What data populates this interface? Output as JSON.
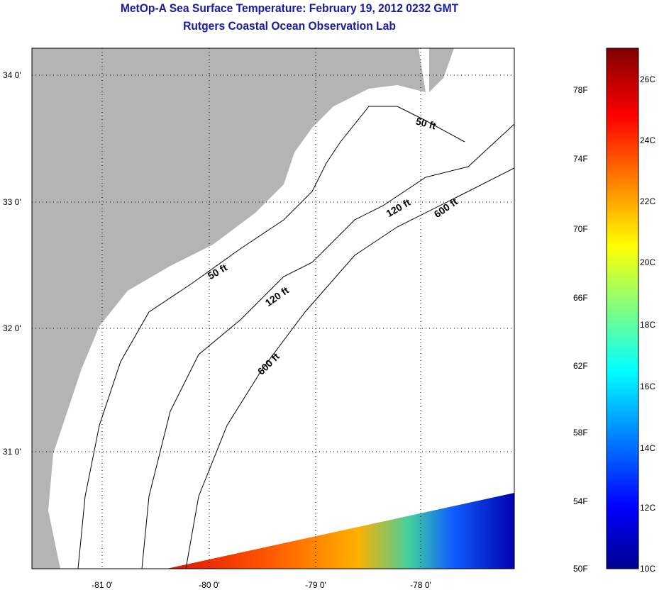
{
  "title": "MetOp-A Sea Surface Temperature:  February 19, 2012 0232 GMT",
  "subtitle": "Rutgers Coastal Ocean Observation Lab",
  "map": {
    "lon_labels": [
      "-81 0'",
      "-80 0'",
      "-79 0'",
      "-78 0'"
    ],
    "lat_labels": [
      "34 0'",
      "33 0'",
      "32 0'",
      "31 0'"
    ],
    "contour_labels": [
      "50 ft",
      "50 ft",
      "120 ft",
      "120 ft",
      "600 ft",
      "600 ft"
    ],
    "land_color": "#b4b4b4"
  },
  "colorbar": {
    "f_labels": [
      "78F",
      "74F",
      "70F",
      "66F",
      "62F",
      "58F",
      "54F",
      "50F"
    ],
    "c_labels": [
      "26C",
      "24C",
      "22C",
      "20C",
      "18C",
      "16C",
      "14C",
      "12C",
      "10C"
    ],
    "colors": [
      "#00008f",
      "#0000ff",
      "#00ffff",
      "#ffff00",
      "#ff0000",
      "#800000"
    ]
  }
}
